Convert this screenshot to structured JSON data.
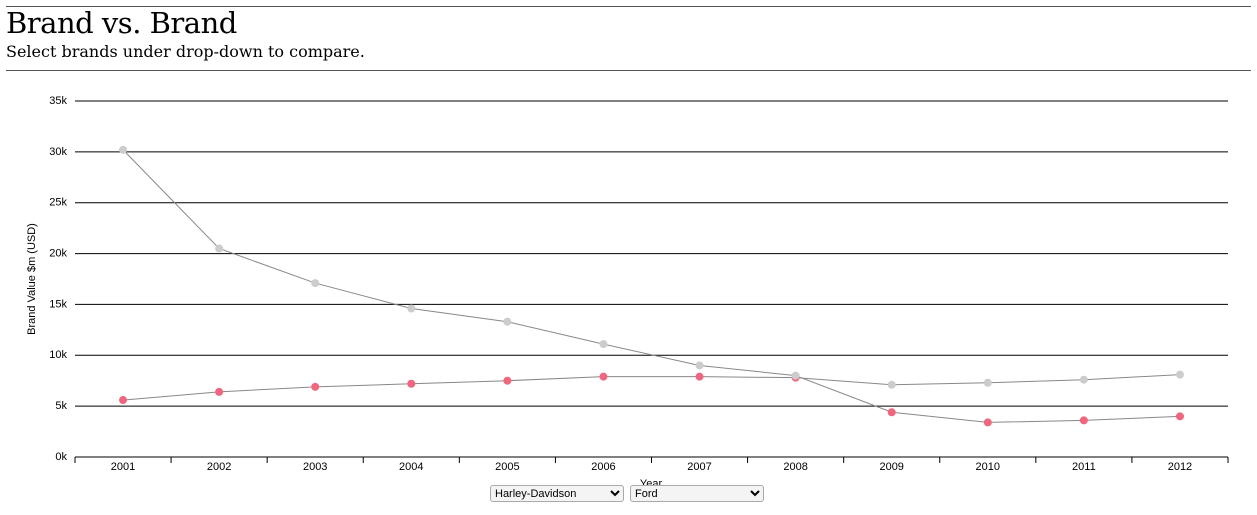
{
  "header": {
    "title": "Brand vs. Brand",
    "subtitle": "Select brands under drop-down to compare."
  },
  "chart_data": {
    "type": "line",
    "y_label": "Brand Value $m (USD)",
    "x_label": "Year",
    "categories": [
      "2001",
      "2002",
      "2003",
      "2004",
      "2005",
      "2006",
      "2007",
      "2008",
      "2009",
      "2010",
      "2011",
      "2012"
    ],
    "ylim": [
      0,
      35000
    ],
    "yticks": [
      {
        "value": 0,
        "label": "0k"
      },
      {
        "value": 5000,
        "label": "5k"
      },
      {
        "value": 10000,
        "label": "10k"
      },
      {
        "value": 15000,
        "label": "15k"
      },
      {
        "value": 20000,
        "label": "20k"
      },
      {
        "value": 25000,
        "label": "25k"
      },
      {
        "value": 30000,
        "label": "30k"
      },
      {
        "value": 35000,
        "label": "35k"
      }
    ],
    "grid": true,
    "line_color": "#888888",
    "series": [
      {
        "name": "Harley-Davidson",
        "values": [
          5600,
          6400,
          6900,
          7200,
          7500,
          7900,
          7900,
          7800,
          7100,
          7300,
          7600,
          8100
        ],
        "point_colors": [
          "#f0667e",
          "#f0667e",
          "#f0667e",
          "#f0667e",
          "#f0667e",
          "#f0667e",
          "#f0667e",
          "#f0667e",
          "#cccccc",
          "#cccccc",
          "#cccccc",
          "#cccccc"
        ]
      },
      {
        "name": "Ford",
        "values": [
          30200,
          20500,
          17100,
          14600,
          13300,
          11100,
          9000,
          8000,
          4400,
          3400,
          3600,
          4000
        ],
        "point_colors": [
          "#cccccc",
          "#cccccc",
          "#cccccc",
          "#cccccc",
          "#cccccc",
          "#cccccc",
          "#cccccc",
          "#cccccc",
          "#f0667e",
          "#f0667e",
          "#f0667e",
          "#f0667e"
        ]
      }
    ]
  }
}
